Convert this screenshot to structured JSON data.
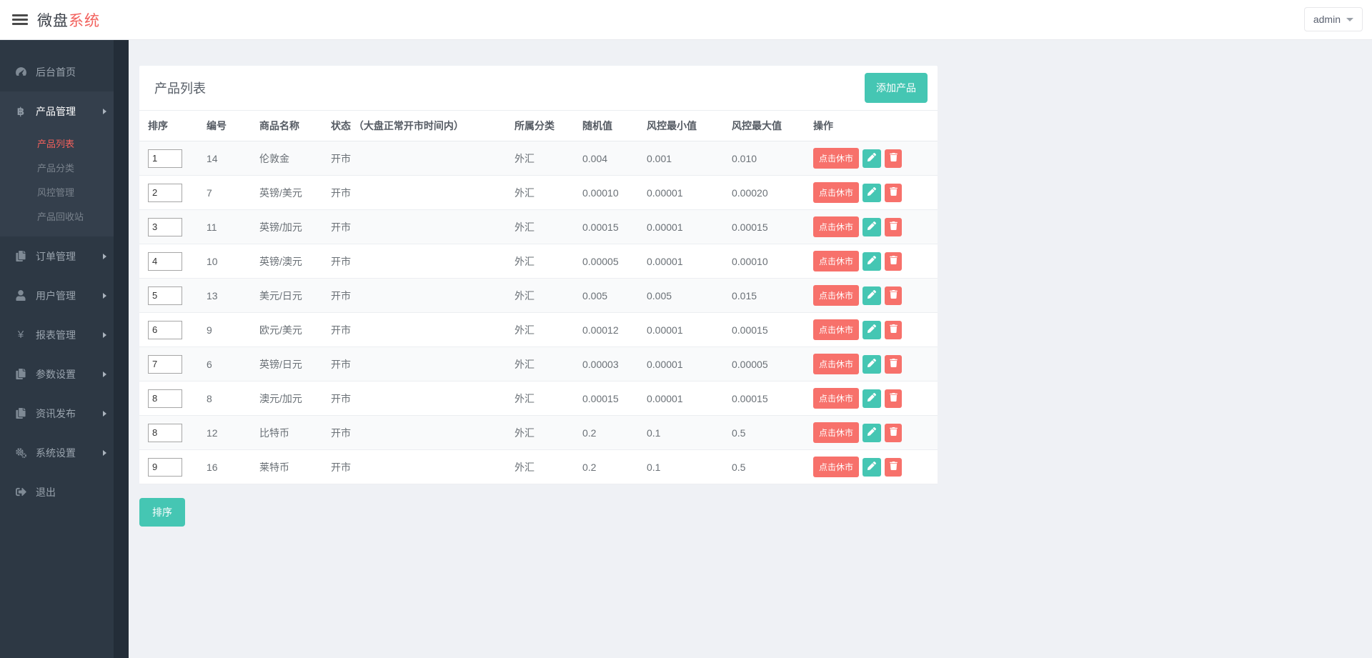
{
  "colors": {
    "accent_text": "#f2605c",
    "coral_button": "#f7716b",
    "teal": "#45c6b3",
    "sidebar_bg": "#2d3844"
  },
  "header": {
    "brand_primary": "微盘",
    "brand_accent": "系统",
    "user_label": "admin"
  },
  "sidebar": {
    "items": [
      {
        "id": "dashboard",
        "label": "后台首页",
        "icon": "dashboard-icon",
        "bright": false,
        "arrow": false
      },
      {
        "id": "product",
        "label": "产品管理",
        "icon": "bitcoin-icon",
        "bright": true,
        "arrow": true,
        "expanded": true,
        "children": [
          {
            "id": "product-list",
            "label": "产品列表",
            "active": true
          },
          {
            "id": "product-category",
            "label": "产品分类",
            "active": false
          },
          {
            "id": "risk-control",
            "label": "风控管理",
            "active": false
          },
          {
            "id": "product-recycle",
            "label": "产品回收站",
            "active": false
          }
        ]
      },
      {
        "id": "order",
        "label": "订单管理",
        "icon": "files-icon",
        "bright": false,
        "arrow": true
      },
      {
        "id": "user",
        "label": "用户管理",
        "icon": "user-icon",
        "bright": false,
        "arrow": true
      },
      {
        "id": "report",
        "label": "报表管理",
        "icon": "yen-icon",
        "bright": false,
        "arrow": true
      },
      {
        "id": "param",
        "label": "参数设置",
        "icon": "files-icon",
        "bright": false,
        "arrow": true
      },
      {
        "id": "news",
        "label": "资讯发布",
        "icon": "files-icon",
        "bright": false,
        "arrow": true
      },
      {
        "id": "system",
        "label": "系统设置",
        "icon": "gears-icon",
        "bright": false,
        "arrow": true
      },
      {
        "id": "logout",
        "label": "退出",
        "icon": "logout-icon",
        "bright": false,
        "arrow": false
      }
    ]
  },
  "main": {
    "card_title": "产品列表",
    "add_button_label": "添加产品",
    "sort_button_label": "排序",
    "table": {
      "columns": [
        {
          "key": "sort",
          "label": "排序"
        },
        {
          "key": "id",
          "label": "编号"
        },
        {
          "key": "name",
          "label": "商品名称"
        },
        {
          "key": "status",
          "label": "状态 （大盘正常开市时间内）"
        },
        {
          "key": "category",
          "label": "所属分类"
        },
        {
          "key": "random",
          "label": "随机值"
        },
        {
          "key": "risk-min",
          "label": "风控最小值"
        },
        {
          "key": "risk-max",
          "label": "风控最大值"
        },
        {
          "key": "action",
          "label": "操作"
        }
      ],
      "close_market_label": "点击休市",
      "rows": [
        {
          "sort": "1",
          "id": "14",
          "name": "伦敦金",
          "status": "开市",
          "category": "外汇",
          "random": "0.004",
          "risk_min": "0.001",
          "risk_max": "0.010"
        },
        {
          "sort": "2",
          "id": "7",
          "name": "英镑/美元",
          "status": "开市",
          "category": "外汇",
          "random": "0.00010",
          "risk_min": "0.00001",
          "risk_max": "0.00020"
        },
        {
          "sort": "3",
          "id": "11",
          "name": "英镑/加元",
          "status": "开市",
          "category": "外汇",
          "random": "0.00015",
          "risk_min": "0.00001",
          "risk_max": "0.00015"
        },
        {
          "sort": "4",
          "id": "10",
          "name": "英镑/澳元",
          "status": "开市",
          "category": "外汇",
          "random": "0.00005",
          "risk_min": "0.00001",
          "risk_max": "0.00010"
        },
        {
          "sort": "5",
          "id": "13",
          "name": "美元/日元",
          "status": "开市",
          "category": "外汇",
          "random": "0.005",
          "risk_min": "0.005",
          "risk_max": "0.015"
        },
        {
          "sort": "6",
          "id": "9",
          "name": "欧元/美元",
          "status": "开市",
          "category": "外汇",
          "random": "0.00012",
          "risk_min": "0.00001",
          "risk_max": "0.00015"
        },
        {
          "sort": "7",
          "id": "6",
          "name": "英镑/日元",
          "status": "开市",
          "category": "外汇",
          "random": "0.00003",
          "risk_min": "0.00001",
          "risk_max": "0.00005"
        },
        {
          "sort": "8",
          "id": "8",
          "name": "澳元/加元",
          "status": "开市",
          "category": "外汇",
          "random": "0.00015",
          "risk_min": "0.00001",
          "risk_max": "0.00015"
        },
        {
          "sort": "8",
          "id": "12",
          "name": "比特币",
          "status": "开市",
          "category": "外汇",
          "random": "0.2",
          "risk_min": "0.1",
          "risk_max": "0.5"
        },
        {
          "sort": "9",
          "id": "16",
          "name": "莱特币",
          "status": "开市",
          "category": "外汇",
          "random": "0.2",
          "risk_min": "0.1",
          "risk_max": "0.5"
        }
      ]
    }
  }
}
